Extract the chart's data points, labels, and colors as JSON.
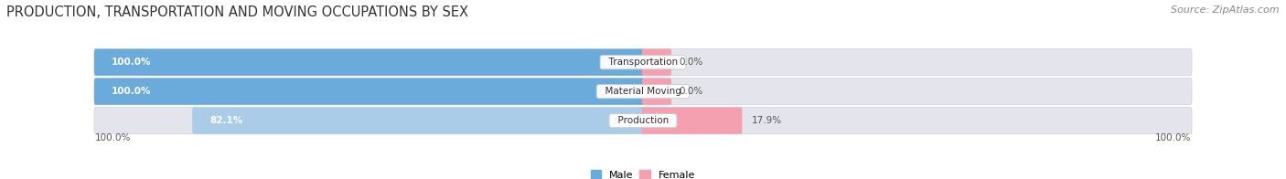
{
  "title": "PRODUCTION, TRANSPORTATION AND MOVING OCCUPATIONS BY SEX",
  "source": "Source: ZipAtlas.com",
  "categories": [
    "Transportation",
    "Material Moving",
    "Production"
  ],
  "male_values": [
    100.0,
    100.0,
    82.1
  ],
  "female_values": [
    0.0,
    0.0,
    17.9
  ],
  "male_color_full": "#6aabdc",
  "male_color_light": "#aacce8",
  "female_color_full": "#e8607a",
  "female_color_light": "#f4a0b0",
  "bar_bg_color": "#e4e4ec",
  "bar_bg_border": "#d0d0dc",
  "title_fontsize": 10.5,
  "source_fontsize": 8,
  "bar_height": 0.52,
  "bar_spacing": 1.0,
  "legend_male": "Male",
  "legend_female": "Female",
  "axis_label_left": "100.0%",
  "axis_label_right": "100.0%",
  "label_0pct_color": "#888888",
  "label_pct_male_text": "white",
  "label_pct_female_color": "#555555"
}
